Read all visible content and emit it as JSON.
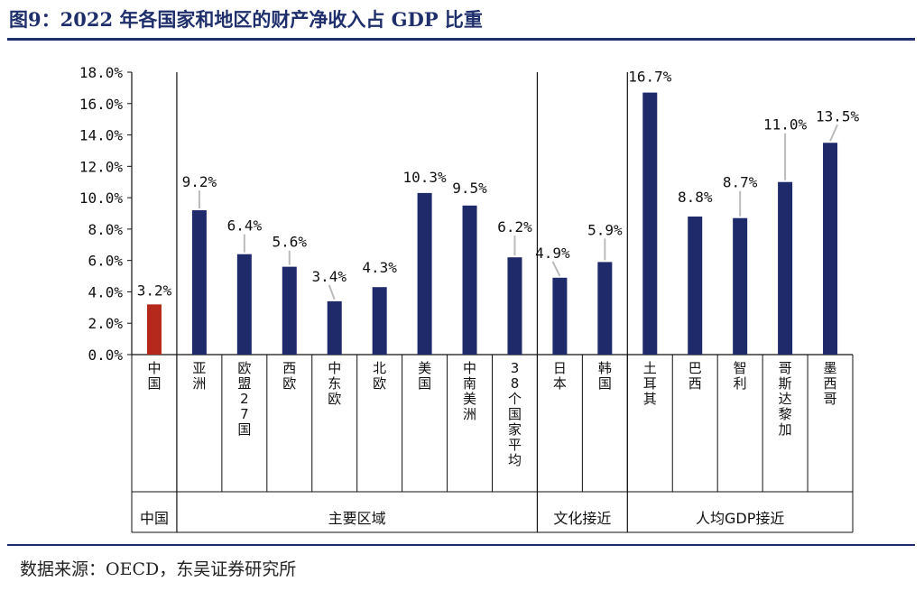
{
  "figure": {
    "title": "图9：2022 年各国家和地区的财产净收入占 GDP 比重",
    "source": "数据来源：OECD，东吴证券研究所"
  },
  "chart_data": {
    "type": "bar",
    "title": "2022 年各国家和地区的财产净收入占 GDP 比重",
    "xlabel": "",
    "ylabel": "",
    "ylim": [
      0,
      18
    ],
    "y_ticks": [
      "0.0%",
      "2.0%",
      "4.0%",
      "6.0%",
      "8.0%",
      "10.0%",
      "12.0%",
      "14.0%",
      "16.0%",
      "18.0%"
    ],
    "categories": [
      "中国",
      "亚洲",
      "欧盟27国",
      "西欧",
      "中东欧",
      "北欧",
      "美国",
      "中南美洲",
      "38个国家平均",
      "日本",
      "韩国",
      "土耳其",
      "巴西",
      "智利",
      "哥斯达黎加",
      "墨西哥"
    ],
    "values": [
      3.2,
      9.2,
      6.4,
      5.6,
      3.4,
      4.3,
      10.3,
      9.5,
      6.2,
      4.9,
      5.9,
      16.7,
      8.8,
      8.7,
      11.0,
      13.5
    ],
    "data_labels": [
      "3.2%",
      "9.2%",
      "6.4%",
      "5.6%",
      "3.4%",
      "4.3%",
      "10.3%",
      "9.5%",
      "6.2%",
      "4.9%",
      "5.9%",
      "16.7%",
      "8.8%",
      "8.7%",
      "11.0%",
      "13.5%"
    ],
    "colors": [
      "#b5281c",
      "#1f2a6b",
      "#1f2a6b",
      "#1f2a6b",
      "#1f2a6b",
      "#1f2a6b",
      "#1f2a6b",
      "#1f2a6b",
      "#1f2a6b",
      "#1f2a6b",
      "#1f2a6b",
      "#1f2a6b",
      "#1f2a6b",
      "#1f2a6b",
      "#1f2a6b",
      "#1f2a6b"
    ],
    "groups": [
      {
        "name": "中国",
        "start": 0,
        "end": 0
      },
      {
        "name": "主要区域",
        "start": 1,
        "end": 8
      },
      {
        "name": "文化接近",
        "start": 9,
        "end": 10
      },
      {
        "name": "人均GDP接近",
        "start": 11,
        "end": 15
      }
    ],
    "legend": "none",
    "grid": false
  }
}
